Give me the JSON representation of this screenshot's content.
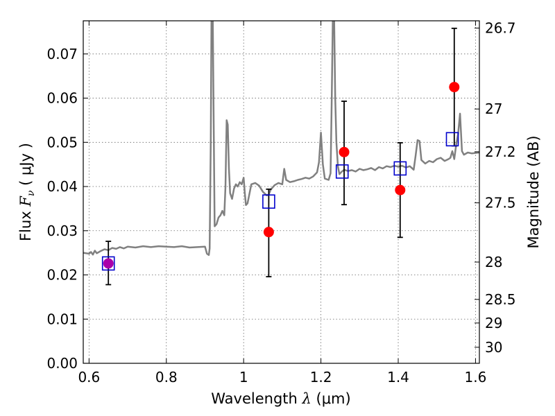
{
  "chart_data": {
    "type": "scatter",
    "xlabel": {
      "prefix": "Wavelength  ",
      "var": "λ",
      "unit": " (μm)"
    },
    "ylabel": {
      "prefix": "Flux  ",
      "var": "F",
      "sub": "ν",
      "unit": "  ( μJy )"
    },
    "y2label": "Magnitude (AB)",
    "xlim": [
      0.585,
      1.61
    ],
    "ylim": [
      0.0,
      0.0775
    ],
    "grid": true,
    "x_ticks": [
      {
        "value": 0.6,
        "label": "0.6"
      },
      {
        "value": 0.8,
        "label": "0.8"
      },
      {
        "value": 1.0,
        "label": "1"
      },
      {
        "value": 1.2,
        "label": "1.2"
      },
      {
        "value": 1.4,
        "label": "1.4"
      },
      {
        "value": 1.6,
        "label": "1.6"
      }
    ],
    "y_ticks": [
      {
        "value": 0.0,
        "label": "0.00"
      },
      {
        "value": 0.01,
        "label": "0.01"
      },
      {
        "value": 0.02,
        "label": "0.02"
      },
      {
        "value": 0.03,
        "label": "0.03"
      },
      {
        "value": 0.04,
        "label": "0.04"
      },
      {
        "value": 0.05,
        "label": "0.05"
      },
      {
        "value": 0.06,
        "label": "0.06"
      },
      {
        "value": 0.07,
        "label": "0.07"
      }
    ],
    "y2_ticks": [
      {
        "label": "26.7"
      },
      {
        "label": "27"
      },
      {
        "label": "27.2"
      },
      {
        "label": "27.5"
      },
      {
        "label": "28"
      },
      {
        "label": "28.5"
      },
      {
        "label": "29"
      },
      {
        "label": "30"
      }
    ],
    "colors": {
      "spectrum": "#808080",
      "observed": "#ff0000",
      "model": "#0000cc",
      "blend": "#aa00aa",
      "errorbar": "#000000",
      "grid": "#666666"
    },
    "spectrum": {
      "x": [
        0.585,
        0.6,
        0.605,
        0.61,
        0.615,
        0.62,
        0.63,
        0.64,
        0.65,
        0.66,
        0.67,
        0.68,
        0.69,
        0.7,
        0.72,
        0.74,
        0.76,
        0.78,
        0.8,
        0.82,
        0.84,
        0.86,
        0.88,
        0.9,
        0.905,
        0.91,
        0.912,
        0.915,
        0.917,
        0.92,
        0.922,
        0.925,
        0.93,
        0.935,
        0.94,
        0.945,
        0.95,
        0.953,
        0.956,
        0.959,
        0.962,
        0.965,
        0.97,
        0.975,
        0.98,
        0.985,
        0.99,
        0.995,
        1.0,
        1.003,
        1.006,
        1.01,
        1.02,
        1.03,
        1.04,
        1.05,
        1.06,
        1.065,
        1.07,
        1.075,
        1.08,
        1.09,
        1.1,
        1.105,
        1.11,
        1.12,
        1.13,
        1.14,
        1.15,
        1.16,
        1.17,
        1.18,
        1.19,
        1.195,
        1.2,
        1.205,
        1.21,
        1.22,
        1.225,
        1.228,
        1.231,
        1.234,
        1.237,
        1.24,
        1.244,
        1.248,
        1.252,
        1.256,
        1.26,
        1.27,
        1.28,
        1.29,
        1.3,
        1.31,
        1.32,
        1.33,
        1.34,
        1.35,
        1.36,
        1.37,
        1.38,
        1.39,
        1.4,
        1.41,
        1.42,
        1.43,
        1.44,
        1.445,
        1.45,
        1.455,
        1.46,
        1.47,
        1.48,
        1.49,
        1.5,
        1.51,
        1.52,
        1.53,
        1.535,
        1.54,
        1.545,
        1.55,
        1.555,
        1.56,
        1.565,
        1.57,
        1.58,
        1.59,
        1.6,
        1.61
      ],
      "y": [
        0.025,
        0.0248,
        0.0252,
        0.0246,
        0.0255,
        0.0249,
        0.0254,
        0.0258,
        0.0256,
        0.0261,
        0.0259,
        0.0263,
        0.026,
        0.0264,
        0.0262,
        0.0265,
        0.0263,
        0.0265,
        0.0264,
        0.0263,
        0.0265,
        0.0262,
        0.0263,
        0.0264,
        0.0248,
        0.0245,
        0.026,
        0.05,
        0.08,
        0.08,
        0.06,
        0.031,
        0.0315,
        0.033,
        0.0335,
        0.0345,
        0.0335,
        0.04,
        0.055,
        0.054,
        0.044,
        0.0385,
        0.0372,
        0.0395,
        0.0405,
        0.04,
        0.041,
        0.0405,
        0.042,
        0.0385,
        0.0358,
        0.0362,
        0.0405,
        0.0408,
        0.0402,
        0.0388,
        0.038,
        0.0382,
        0.0393,
        0.0398,
        0.0403,
        0.0408,
        0.0405,
        0.044,
        0.0415,
        0.041,
        0.0412,
        0.0415,
        0.0417,
        0.042,
        0.0418,
        0.0423,
        0.0432,
        0.0455,
        0.0522,
        0.045,
        0.0418,
        0.0415,
        0.043,
        0.06,
        0.08,
        0.08,
        0.06,
        0.05,
        0.0445,
        0.0428,
        0.0432,
        0.0435,
        0.0438,
        0.0435,
        0.0437,
        0.0434,
        0.044,
        0.0437,
        0.0439,
        0.0442,
        0.0437,
        0.0444,
        0.0441,
        0.0446,
        0.0444,
        0.0447,
        0.0445,
        0.0447,
        0.0443,
        0.0446,
        0.0438,
        0.047,
        0.0505,
        0.0503,
        0.046,
        0.0452,
        0.0458,
        0.0455,
        0.0462,
        0.0465,
        0.0458,
        0.0462,
        0.0465,
        0.048,
        0.0462,
        0.0495,
        0.052,
        0.0565,
        0.048,
        0.0472,
        0.0477,
        0.0475,
        0.0476,
        0.0477
      ]
    },
    "observed": [
      {
        "x": 0.65,
        "y": 0.0226,
        "err_lo": 0.0178,
        "err_hi": 0.0276
      },
      {
        "x": 1.065,
        "y": 0.0297,
        "err_lo": 0.0196,
        "err_hi": 0.0394
      },
      {
        "x": 1.26,
        "y": 0.0478,
        "err_lo": 0.0359,
        "err_hi": 0.0593
      },
      {
        "x": 1.405,
        "y": 0.0392,
        "err_lo": 0.0285,
        "err_hi": 0.0499
      },
      {
        "x": 1.545,
        "y": 0.0625,
        "err_lo": 0.0492,
        "err_hi": 0.0758
      }
    ],
    "model": [
      {
        "x": 0.65,
        "y": 0.0226
      },
      {
        "x": 1.065,
        "y": 0.0366
      },
      {
        "x": 1.255,
        "y": 0.0434
      },
      {
        "x": 1.405,
        "y": 0.0441
      },
      {
        "x": 1.54,
        "y": 0.0507
      }
    ]
  }
}
